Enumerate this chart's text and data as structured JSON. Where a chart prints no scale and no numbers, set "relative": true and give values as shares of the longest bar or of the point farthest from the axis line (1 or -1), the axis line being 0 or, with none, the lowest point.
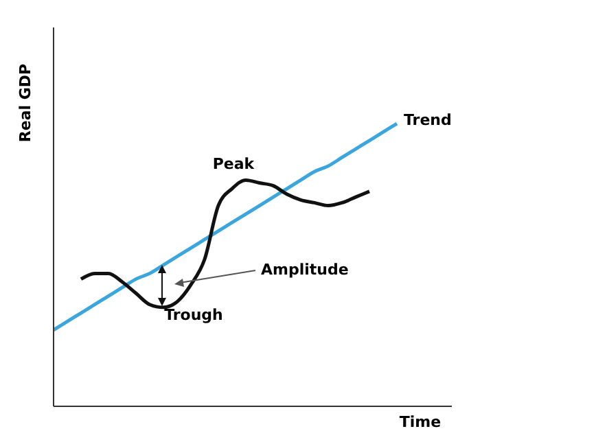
{
  "chart_data": {
    "type": "line",
    "relative": true,
    "xlabel": "Time",
    "ylabel": "Real GDP",
    "categories": [
      null,
      null,
      null,
      null,
      null,
      null,
      null,
      null,
      null,
      null,
      null,
      null,
      null,
      null,
      null,
      null,
      null,
      null,
      null,
      null,
      null,
      null,
      null,
      null,
      null,
      null
    ],
    "series": [
      {
        "name": "Trend",
        "color": "#3aa6dd",
        "values": [
          0.27,
          0.3,
          0.33,
          0.36,
          0.39,
          0.42,
          0.45,
          0.47,
          0.5,
          0.53,
          0.56,
          0.59,
          0.62,
          0.65,
          0.68,
          0.71,
          0.74,
          0.77,
          0.8,
          0.83,
          0.85,
          0.88,
          0.91,
          0.94,
          0.97,
          1.0
        ]
      },
      {
        "color": "#111111",
        "values": [
          null,
          null,
          0.45,
          0.47,
          0.47,
          0.44,
          0.4,
          0.36,
          0.35,
          0.37,
          0.43,
          0.52,
          0.71,
          0.77,
          0.8,
          0.79,
          0.78,
          0.75,
          0.73,
          0.72,
          0.71,
          0.72,
          0.74,
          0.76,
          null,
          null
        ]
      }
    ],
    "annotations": [
      "Peak",
      "Trough",
      "Amplitude"
    ],
    "grid": false,
    "legend": false,
    "marker": "none",
    "line_style": "solid"
  }
}
